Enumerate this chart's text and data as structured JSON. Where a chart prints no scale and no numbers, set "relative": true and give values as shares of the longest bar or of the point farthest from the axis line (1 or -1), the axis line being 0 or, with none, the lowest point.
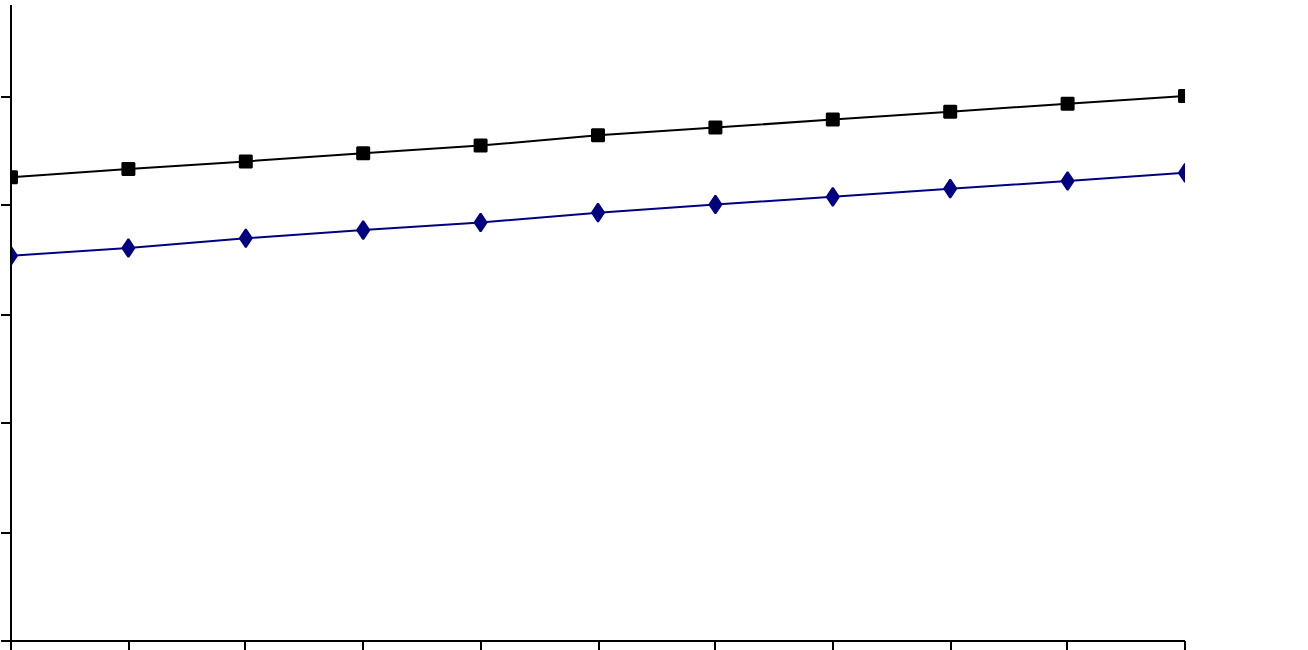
{
  "chart_data": {
    "type": "line",
    "relative": true,
    "grid": false,
    "categories": [
      null,
      null,
      null,
      null,
      null,
      null,
      null,
      null,
      null,
      null,
      null
    ],
    "series": [
      {
        "color": "#000080",
        "marker": "diamond",
        "values": [
          0.707,
          0.721,
          0.739,
          0.754,
          0.768,
          0.786,
          0.801,
          0.815,
          0.83,
          0.844,
          0.859
        ]
      },
      {
        "color": "#000000",
        "marker": "square",
        "values": [
          0.851,
          0.866,
          0.88,
          0.895,
          0.909,
          0.928,
          0.942,
          0.957,
          0.971,
          0.986,
          1.0
        ]
      }
    ]
  }
}
